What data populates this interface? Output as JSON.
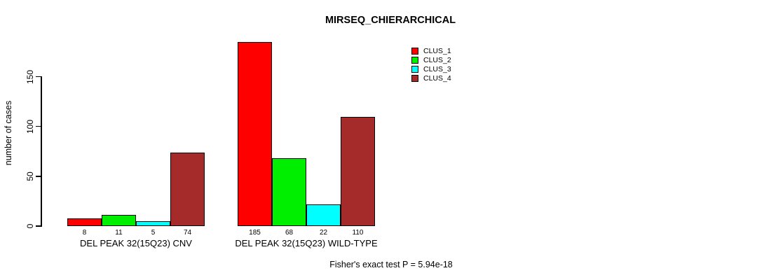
{
  "chart_data": {
    "type": "bar",
    "grouped": true,
    "title": "MIRSEQ_CHIERARCHICAL",
    "ylabel": "number of cases",
    "categories": [
      "DEL PEAK 32(15Q23) CNV",
      "DEL PEAK 32(15Q23) WILD-TYPE"
    ],
    "series": [
      {
        "name": "CLUS_1",
        "color": "#FF0000",
        "values": [
          8,
          185
        ]
      },
      {
        "name": "CLUS_2",
        "color": "#00EE00",
        "values": [
          11,
          68
        ]
      },
      {
        "name": "CLUS_3",
        "color": "#00FFFF",
        "values": [
          5,
          22
        ]
      },
      {
        "name": "CLUS_4",
        "color": "#A52A2A",
        "values": [
          74,
          110
        ]
      }
    ],
    "bar_value_labels": [
      [
        "8",
        "11",
        "5",
        "74"
      ],
      [
        "185",
        "68",
        "22",
        "110"
      ]
    ],
    "yticks": [
      "0",
      "50",
      "100",
      "150"
    ],
    "ylim": [
      0,
      185
    ],
    "grid": false,
    "legend_position": "top-right",
    "footnote": "Fisher's exact test P = 5.94e-18"
  },
  "colors": {
    "background": "#FFFFFF",
    "axis": "#000000",
    "text": "#000000"
  }
}
